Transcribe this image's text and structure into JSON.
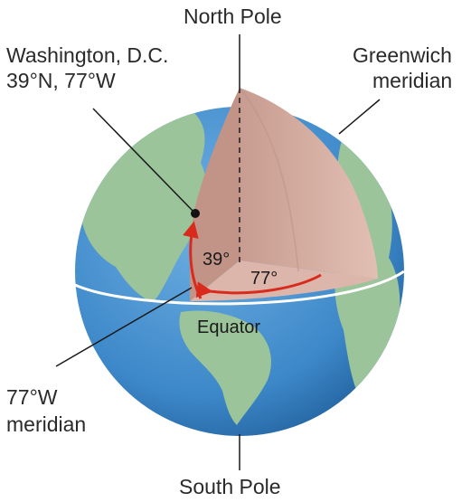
{
  "labels": {
    "north_pole": "North Pole",
    "south_pole": "South Pole",
    "city_name": "Washington, D.C.",
    "city_coords": "39°N, 77°W",
    "greenwich_line1": "Greenwich",
    "greenwich_line2": "meridian",
    "meridian_77_line1": "77°W",
    "meridian_77_line2": "meridian",
    "equator": "Equator",
    "latitude_angle": "39°",
    "longitude_angle": "77°"
  },
  "colors": {
    "ocean": "#3d88c9",
    "land": "#9cc49a",
    "wedge": "#d6aea2",
    "wedge_dark": "#b88f84",
    "arrow": "#d92b1d",
    "equator_line": "#ffffff",
    "leader": "#1a1a1a"
  }
}
